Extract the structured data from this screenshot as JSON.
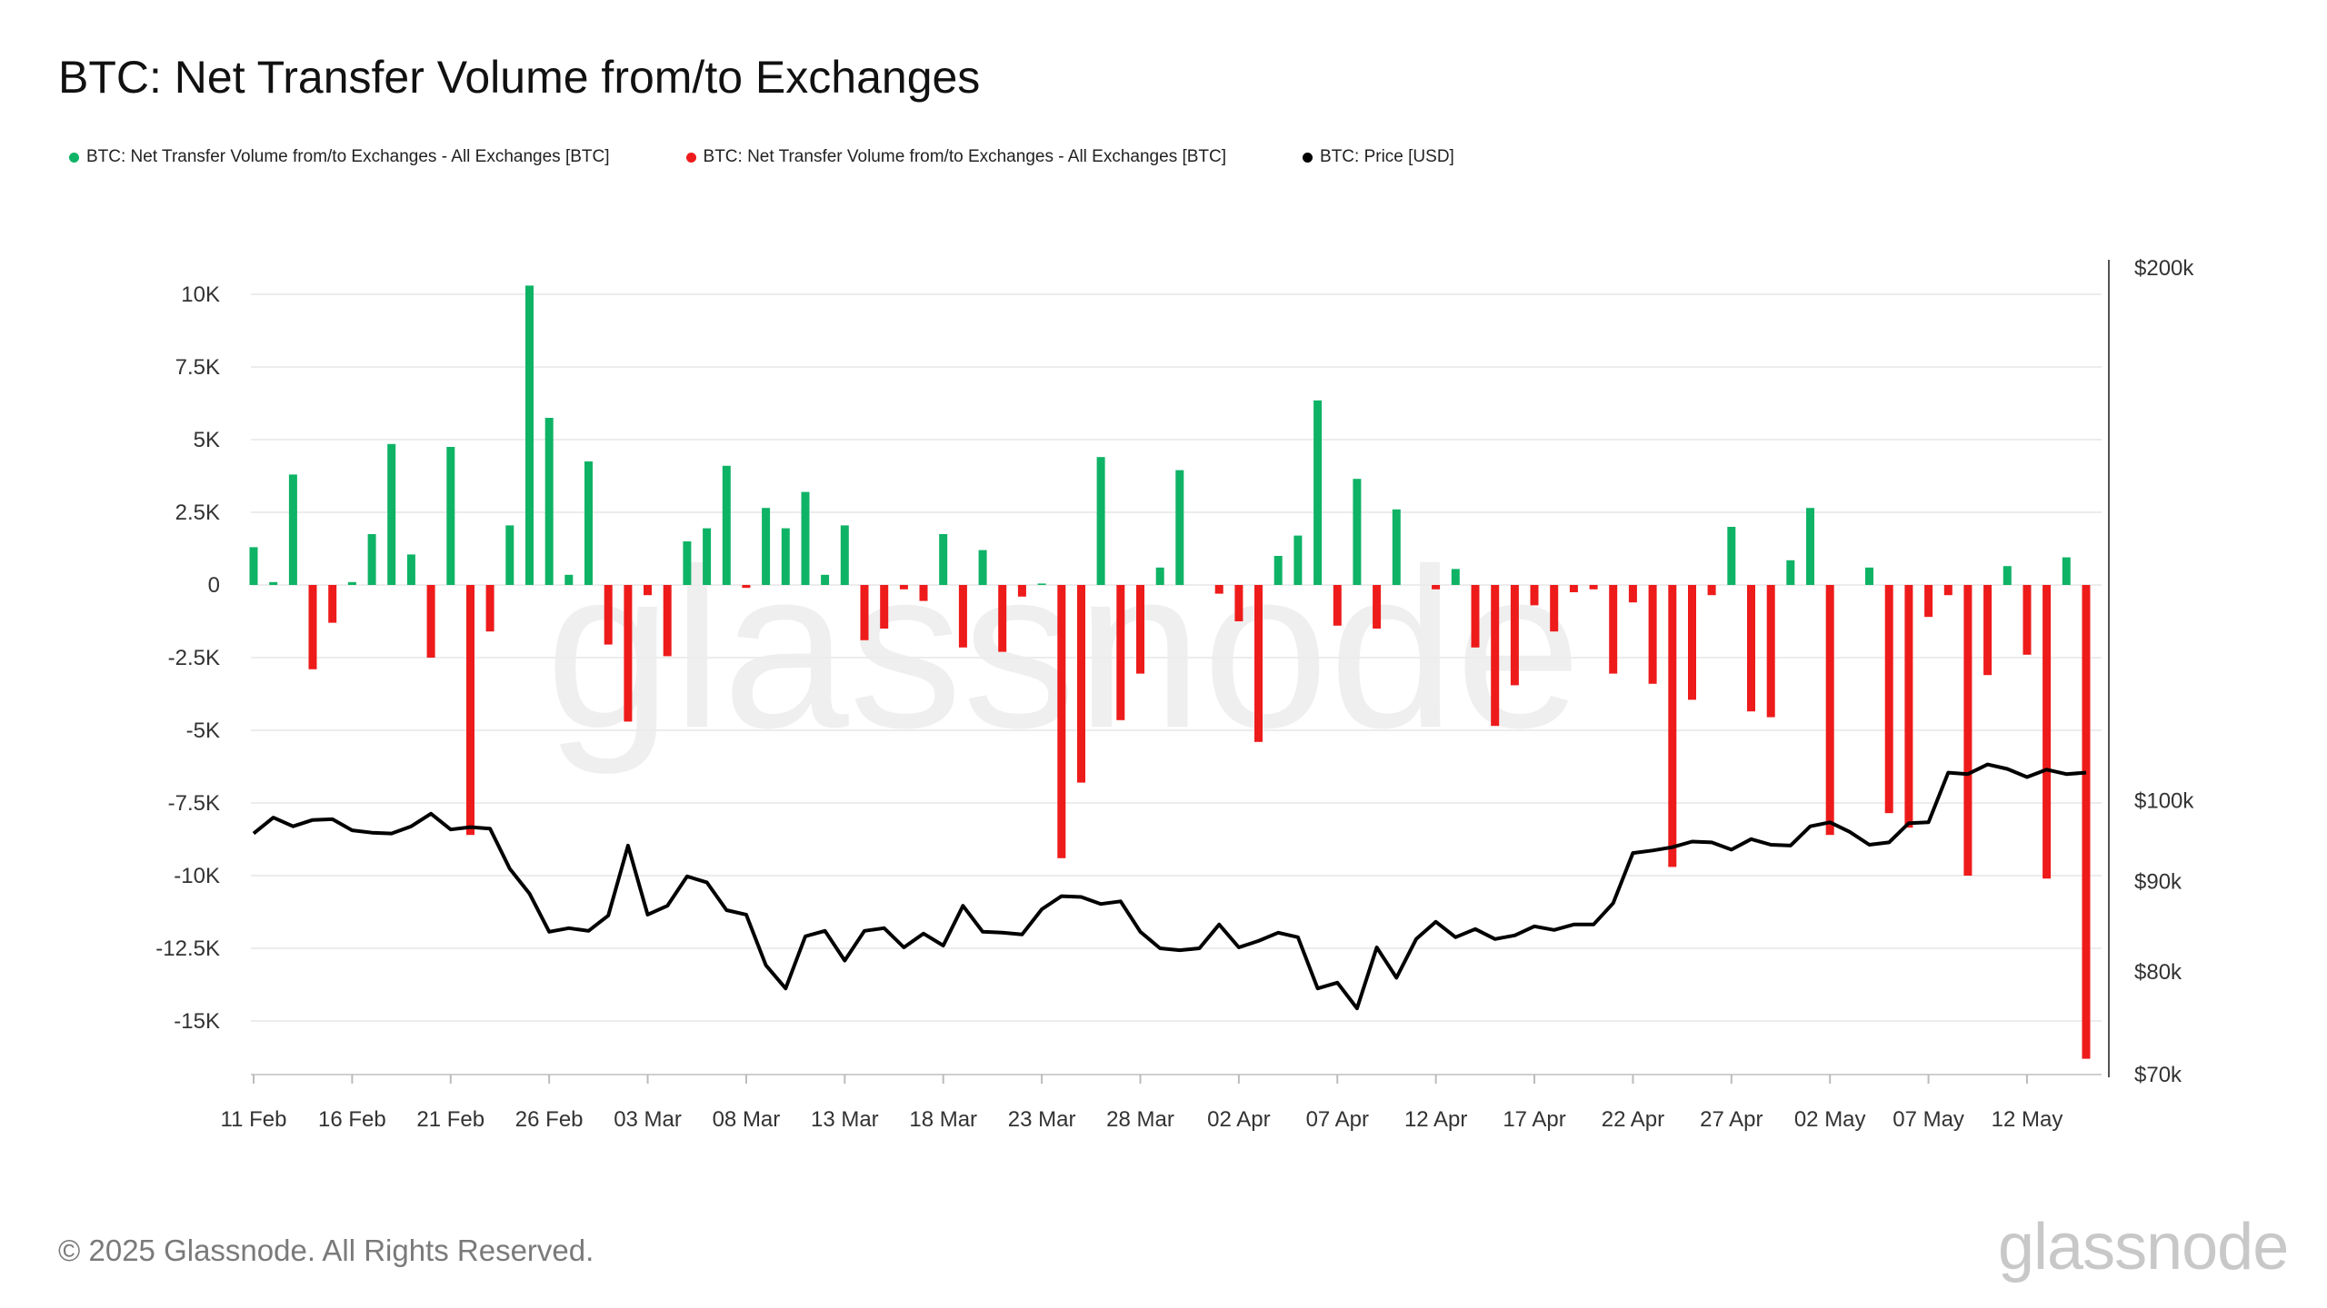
{
  "title": "BTC: Net Transfer Volume from/to Exchanges",
  "footer": {
    "copyright": "© 2025 Glassnode. All Rights Reserved.",
    "brand": "glassnode"
  },
  "legend": [
    {
      "label": "BTC: Net Transfer Volume from/to Exchanges - All Exchanges [BTC]",
      "color": "#0fb366"
    },
    {
      "label": "BTC: Net Transfer Volume from/to Exchanges - All Exchanges [BTC]",
      "color": "#ee1b1b"
    },
    {
      "label": "BTC: Price [USD]",
      "color": "#000000"
    }
  ],
  "colors": {
    "positive": "#0fb366",
    "negative": "#ee1b1b",
    "price": "#000000",
    "grid": "#ececec"
  },
  "chart_data": {
    "type": "bar",
    "title": "BTC: Net Transfer Volume from/to Exchanges",
    "x_tick_labels": [
      "11 Feb",
      "16 Feb",
      "21 Feb",
      "26 Feb",
      "03 Mar",
      "08 Mar",
      "13 Mar",
      "18 Mar",
      "23 Mar",
      "28 Mar",
      "02 Apr",
      "07 Apr",
      "12 Apr",
      "17 Apr",
      "22 Apr",
      "27 Apr",
      "02 May",
      "07 May",
      "12 May"
    ],
    "y_left_ticks": [
      10000,
      7500,
      5000,
      2500,
      0,
      -2500,
      -5000,
      -7500,
      -10000,
      -12500,
      -15000
    ],
    "y_left_tick_labels": [
      "10K",
      "7.5K",
      "5K",
      "2.5K",
      "0",
      "-2.5K",
      "-5K",
      "-7.5K",
      "-10K",
      "-12.5K",
      "-15K"
    ],
    "y_right_ticks": [
      200000,
      100000,
      90000,
      80000,
      70000
    ],
    "y_right_tick_labels": [
      "$200k",
      "$100k",
      "$90k",
      "$80k",
      "$70k"
    ],
    "y_right_scale": "log",
    "grid": true,
    "legend_position": "top-left",
    "series": [
      {
        "name": "BTC: Net Transfer Volume from/to Exchanges - All Exchanges [BTC]",
        "axis": "left",
        "start_date": "2025-02-11",
        "values": [
          1300,
          100,
          3800,
          -2900,
          -1300,
          100,
          1750,
          4850,
          1050,
          -2500,
          4750,
          -8600,
          -1600,
          2050,
          10300,
          5750,
          350,
          4250,
          -2050,
          -4700,
          -350,
          -2450,
          1500,
          1950,
          4100,
          -100,
          2650,
          1950,
          3200,
          350,
          2050,
          -1900,
          -1500,
          -150,
          -550,
          1750,
          -2150,
          1200,
          -2300,
          -400,
          50,
          -9400,
          -6800,
          4400,
          -4650,
          -3050,
          600,
          3950,
          0,
          -300,
          -1250,
          -5400,
          1000,
          1700,
          6350,
          -1400,
          3650,
          -1500,
          2600,
          0,
          -150,
          550,
          -2150,
          -4850,
          -3450,
          -700,
          -1600,
          -250,
          -150,
          -3050,
          -600,
          -3400,
          -9700,
          -3950,
          -350,
          2000,
          -4350,
          -4550,
          850,
          2650,
          -8600,
          0,
          600,
          -7850,
          -8350,
          -1100,
          -350,
          -10000,
          -3100,
          650,
          -2400,
          -10100,
          950,
          -16300
        ]
      },
      {
        "name": "BTC: Price [USD]",
        "axis": "right",
        "start_date": "2025-02-11",
        "values": [
          95800,
          97800,
          96700,
          97500,
          97600,
          96200,
          95900,
          95800,
          96700,
          98300,
          96300,
          96600,
          96400,
          91500,
          88600,
          84300,
          84700,
          84400,
          86100,
          94300,
          86200,
          87200,
          90600,
          89900,
          86700,
          86200,
          80700,
          78300,
          83800,
          84400,
          81200,
          84400,
          84700,
          82600,
          84100,
          82800,
          87200,
          84300,
          84200,
          84000,
          86800,
          88300,
          88200,
          87400,
          87700,
          84300,
          82500,
          82300,
          82500,
          85100,
          82600,
          83300,
          84200,
          83700,
          78300,
          78900,
          76300,
          82600,
          79400,
          83500,
          85400,
          83700,
          84600,
          83500,
          83900,
          84900,
          84500,
          85100,
          85100,
          87500,
          93400,
          93700,
          94100,
          94800,
          94700,
          93800,
          95100,
          94400,
          94300,
          96700,
          97200,
          96000,
          94400,
          94700,
          97100,
          97200,
          103700,
          103500,
          104800,
          104200,
          103100,
          104100,
          103500,
          103700
        ]
      }
    ]
  }
}
